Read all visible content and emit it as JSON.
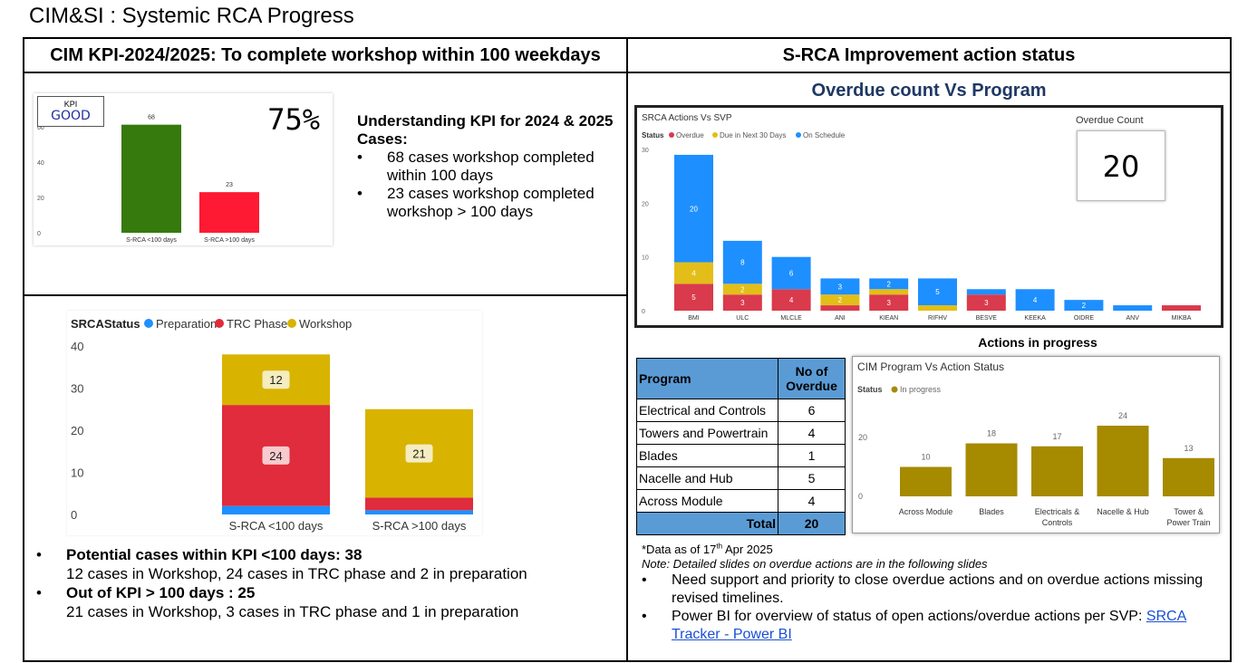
{
  "page_title": "CIM&SI : Systemic RCA Progress",
  "left_header": "CIM KPI-2024/2025: To complete workshop within 100 weekdays",
  "right_header": "S-RCA Improvement action status",
  "kpi_card": {
    "badge_label": "KPI",
    "badge_value": "GOOD",
    "percent": "75%"
  },
  "kpi_understanding": {
    "heading": "Understanding KPI for 2024 & 2025 Cases:",
    "bullets": [
      "68 cases workshop completed within 100 days",
      "23 cases workshop completed workshop > 100 days"
    ]
  },
  "potential": {
    "b1_title": "Potential cases within KPI <100 days: 38",
    "b1_text": "12 cases in Workshop, 24 cases in TRC phase and 2 in preparation",
    "b2_title": "Out of KPI > 100 days : 25",
    "b2_text": "21 cases in Workshop, 3 cases in TRC phase and 1 in preparation"
  },
  "overdue_title": "Overdue count Vs Program",
  "overdue_count": {
    "label": "Overdue Count",
    "value": "20"
  },
  "actions_in_progress_title": "Actions in progress",
  "overdue_table": {
    "col1": "Program",
    "col2": "No of Overdue",
    "rows": [
      {
        "program": "Electrical and Controls",
        "count": "6"
      },
      {
        "program": "Towers and Powertrain",
        "count": "4"
      },
      {
        "program": "Blades",
        "count": "1"
      },
      {
        "program": "Nacelle and Hub",
        "count": "5"
      },
      {
        "program": "Across Module",
        "count": "4"
      }
    ],
    "total_label": "Total",
    "total_value": "20"
  },
  "notes": {
    "data_as_of": "*Data as of 17th Apr 2025",
    "note": "Note: Detailed slides on overdue actions are in the following slides",
    "bullet1": "Need support and priority to close overdue actions and on overdue actions missing revised timelines.",
    "bullet2_text": "Power BI for overview of status of open actions/overdue actions per SVP: ",
    "bullet2_link": "SRCA Tracker - Power BI"
  },
  "colors": {
    "green": "#367A0E",
    "red_kpi": "#FF1A33",
    "blue": "#1E90FF",
    "red": "#E02C3C",
    "gold": "#D8B300",
    "srca_red": "#D93A4C",
    "srca_gold": "#E3BE18",
    "srca_blue": "#1E8FFF",
    "olive": "#A68A00",
    "table_blue": "#5B9BD5"
  },
  "chart_data": [
    {
      "id": "kpi",
      "type": "bar",
      "categories": [
        "S-RCA <100 days",
        "S-RCA >100 days"
      ],
      "values": [
        68,
        23
      ],
      "ylim": [
        0,
        60
      ],
      "yticks": [
        "0",
        "20",
        "40",
        "60"
      ]
    },
    {
      "id": "srca_status",
      "type": "bar",
      "stacked": true,
      "legend_title": "SRCAStatus",
      "categories": [
        "S-RCA <100 days",
        "S-RCA >100 days"
      ],
      "series": [
        {
          "name": "Preparation",
          "values": [
            2,
            1
          ]
        },
        {
          "name": "TRC Phase",
          "values": [
            24,
            3
          ]
        },
        {
          "name": "Workshop",
          "values": [
            12,
            21
          ]
        }
      ],
      "labels": [
        [
          "",
          "24",
          "12"
        ],
        [
          "",
          "",
          "21"
        ]
      ],
      "ylim": [
        0,
        40
      ],
      "yticks": [
        "0",
        "10",
        "20",
        "30",
        "40"
      ]
    },
    {
      "id": "actions_vs_svp",
      "type": "bar",
      "stacked": true,
      "title": "SRCA Actions Vs SVP",
      "legend_title": "Status",
      "categories": [
        "BMI",
        "ULC",
        "MLCLE",
        "ANI",
        "KIEAN",
        "RIFHV",
        "BESVE",
        "KEEKA",
        "OIDRE",
        "ANV",
        "MIKBA"
      ],
      "series": [
        {
          "name": "Overdue",
          "values": [
            5,
            3,
            4,
            1,
            3,
            0,
            3,
            0,
            0,
            0,
            1
          ]
        },
        {
          "name": "Due in Next 30 Days",
          "values": [
            4,
            2,
            0,
            2,
            1,
            1,
            0,
            0,
            0,
            0,
            0
          ]
        },
        {
          "name": "On Schedule",
          "values": [
            20,
            8,
            6,
            3,
            2,
            5,
            1,
            4,
            2,
            1,
            0
          ]
        }
      ],
      "labels": [
        [
          "5",
          "4",
          "20"
        ],
        [
          "3",
          "2",
          "8"
        ],
        [
          "4",
          "",
          "6"
        ],
        [
          "",
          "2",
          "3"
        ],
        [
          "3",
          "",
          "2"
        ],
        [
          "",
          "",
          "5"
        ],
        [
          "3",
          "",
          ""
        ],
        [
          "",
          "",
          "4"
        ],
        [
          "",
          "",
          "2"
        ],
        [
          "",
          "",
          ""
        ],
        [
          "",
          "",
          ""
        ]
      ],
      "ylim": [
        0,
        30
      ],
      "yticks": [
        "0",
        "10",
        "20",
        "30"
      ]
    },
    {
      "id": "program_vs_action",
      "type": "bar",
      "title": "CIM Program Vs Action Status",
      "legend_title": "Status",
      "series_name": "In progress",
      "categories": [
        "Across Module",
        "Blades",
        "Electricals & Controls",
        "Nacelle & Hub",
        "Tower & Power Train"
      ],
      "values": [
        10,
        18,
        17,
        24,
        13
      ],
      "ylim": [
        0,
        25
      ],
      "yticks": [
        "0",
        "20"
      ]
    }
  ]
}
